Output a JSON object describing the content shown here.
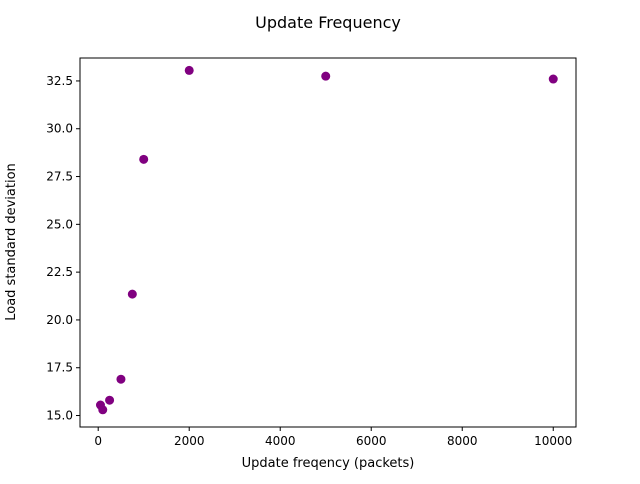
{
  "chart_data": {
    "type": "scatter",
    "title": "Update Frequency",
    "xlabel": "Update freqency (packets)",
    "ylabel": "Load standard deviation",
    "xlim": [
      -400,
      10500
    ],
    "ylim": [
      14.4,
      33.7
    ],
    "xticks": [
      0,
      2000,
      4000,
      6000,
      8000,
      10000
    ],
    "xtick_labels": [
      "0",
      "2000",
      "4000",
      "6000",
      "8000",
      "10000"
    ],
    "yticks": [
      15.0,
      17.5,
      20.0,
      22.5,
      25.0,
      27.5,
      30.0,
      32.5
    ],
    "ytick_labels": [
      "15.0",
      "17.5",
      "20.0",
      "22.5",
      "25.0",
      "27.5",
      "30.0",
      "32.5"
    ],
    "grid": false,
    "legend": "none",
    "marker_color": "#800080",
    "series": [
      {
        "points": [
          {
            "x": 50,
            "y": 15.55
          },
          {
            "x": 100,
            "y": 15.3
          },
          {
            "x": 250,
            "y": 15.8
          },
          {
            "x": 500,
            "y": 16.9
          },
          {
            "x": 750,
            "y": 21.35
          },
          {
            "x": 1000,
            "y": 28.4
          },
          {
            "x": 2000,
            "y": 33.05
          },
          {
            "x": 5000,
            "y": 32.75
          },
          {
            "x": 10000,
            "y": 32.6
          }
        ]
      }
    ]
  }
}
